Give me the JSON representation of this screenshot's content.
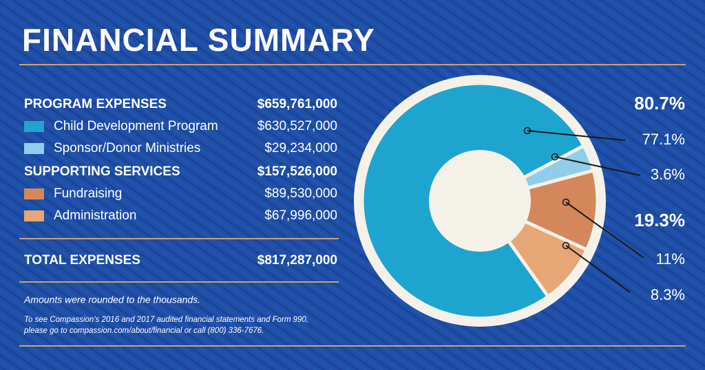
{
  "title": "FINANCIAL SUMMARY",
  "table": {
    "groups": [
      {
        "name": "PROGRAM EXPENSES",
        "total": "$659,761,000",
        "items": [
          {
            "name": "Child Development Program",
            "amount": "$630,527,000"
          },
          {
            "name": "Sponsor/Donor Ministries",
            "amount": "$29,234,000"
          }
        ]
      },
      {
        "name": "SUPPORTING SERVICES",
        "total": "$157,526,000",
        "items": [
          {
            "name": "Fundraising",
            "amount": "$89,530,000"
          },
          {
            "name": "Administration",
            "amount": "$67,996,000"
          }
        ]
      }
    ],
    "total_label": "TOTAL EXPENSES",
    "total": "$817,287,000"
  },
  "notes": [
    "Amounts were rounded to the thousands.",
    "To see Compassion’s 2016 and 2017 audited financial statements and Form 990,",
    "please go to compassion.com/about/financial or call (800) 336-7676."
  ],
  "chart_data": {
    "type": "pie",
    "values": [
      77.1,
      3.6,
      11,
      8.3
    ],
    "value_labels": [
      "77.1%",
      "3.6%",
      "11%",
      "8.3%"
    ],
    "colors": [
      "#1ea5cf",
      "#8fcdea",
      "#d4875a",
      "#e6a676"
    ],
    "group_values": [
      80.7,
      19.3
    ],
    "group_value_labels": [
      "80.7%",
      "19.3%"
    ]
  }
}
